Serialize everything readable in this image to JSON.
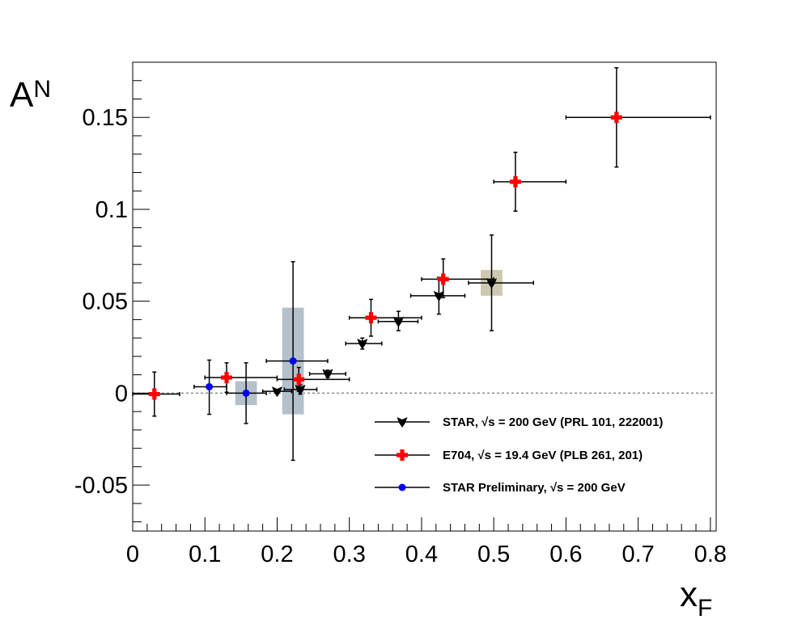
{
  "chart_data": {
    "type": "scatter",
    "title": "",
    "xlabel": "x",
    "xlabel_sub": "F",
    "ylabel": "A",
    "ylabel_sub": "N",
    "xlim": [
      0,
      0.808
    ],
    "ylim": [
      -0.075,
      0.18
    ],
    "x_ticks": [
      0,
      0.1,
      0.2,
      0.3,
      0.4,
      0.5,
      0.6,
      0.7,
      0.8
    ],
    "x_tick_labels": [
      "0",
      "0.1",
      "0.2",
      "0.3",
      "0.4",
      "0.5",
      "0.6",
      "0.7",
      "0.8"
    ],
    "y_ticks": [
      -0.05,
      0,
      0.05,
      0.1,
      0.15
    ],
    "y_tick_labels": [
      "-0.05",
      "0",
      "0.05",
      "0.1",
      "0.15"
    ],
    "grid": false,
    "zero_line": true,
    "legend_position": "bottom-right",
    "series": [
      {
        "name": "STAR, √s = 200 GeV (PRL 101, 222001)",
        "marker": "triangle-down",
        "color": "#000000",
        "points": [
          {
            "x": 0.2,
            "y": 0.001,
            "xlo": 0.18,
            "xhi": 0.22,
            "ylo": 0.0,
            "yhi": 0.002
          },
          {
            "x": 0.232,
            "y": 0.002,
            "xlo": 0.21,
            "xhi": 0.255,
            "ylo": -0.0005,
            "yhi": 0.0045
          },
          {
            "x": 0.27,
            "y": 0.0105,
            "xlo": 0.245,
            "xhi": 0.295,
            "ylo": 0.0085,
            "yhi": 0.0125
          },
          {
            "x": 0.318,
            "y": 0.027,
            "xlo": 0.295,
            "xhi": 0.345,
            "ylo": 0.024,
            "yhi": 0.03
          },
          {
            "x": 0.368,
            "y": 0.039,
            "xlo": 0.34,
            "xhi": 0.395,
            "ylo": 0.034,
            "yhi": 0.0445
          },
          {
            "x": 0.424,
            "y": 0.053,
            "xlo": 0.385,
            "xhi": 0.46,
            "ylo": 0.043,
            "yhi": 0.063
          },
          {
            "x": 0.497,
            "y": 0.06,
            "xlo": 0.465,
            "xhi": 0.555,
            "ylo": 0.034,
            "yhi": 0.086
          }
        ]
      },
      {
        "name": "E704, √s = 19.4 GeV (PLB 261, 201)",
        "marker": "cross",
        "color": "#ff0000",
        "points": [
          {
            "x": 0.03,
            "y": -0.0005,
            "xlo": 0.0,
            "xhi": 0.065,
            "ylo": -0.0125,
            "yhi": 0.0115
          },
          {
            "x": 0.13,
            "y": 0.0085,
            "xlo": 0.1,
            "xhi": 0.2,
            "ylo": 0.0005,
            "yhi": 0.0165
          },
          {
            "x": 0.23,
            "y": 0.0075,
            "xlo": 0.2,
            "xhi": 0.3,
            "ylo": 0.001,
            "yhi": 0.014
          },
          {
            "x": 0.33,
            "y": 0.041,
            "xlo": 0.3,
            "xhi": 0.4,
            "ylo": 0.031,
            "yhi": 0.051
          },
          {
            "x": 0.43,
            "y": 0.062,
            "xlo": 0.4,
            "xhi": 0.5,
            "ylo": 0.052,
            "yhi": 0.073
          },
          {
            "x": 0.53,
            "y": 0.115,
            "xlo": 0.5,
            "xhi": 0.6,
            "ylo": 0.099,
            "yhi": 0.131
          },
          {
            "x": 0.67,
            "y": 0.15,
            "xlo": 0.6,
            "xhi": 0.8,
            "ylo": 0.123,
            "yhi": 0.177
          }
        ]
      },
      {
        "name": "STAR Preliminary, √s = 200 GeV",
        "marker": "circle",
        "color": "#0000ff",
        "points": [
          {
            "x": 0.106,
            "y": 0.0035,
            "xlo": 0.085,
            "xhi": 0.13,
            "ylo": -0.0115,
            "yhi": 0.018
          },
          {
            "x": 0.157,
            "y": 0.0,
            "xlo": 0.13,
            "xhi": 0.185,
            "ylo": -0.0165,
            "yhi": 0.0165
          },
          {
            "x": 0.222,
            "y": 0.0175,
            "xlo": 0.185,
            "xhi": 0.27,
            "ylo": -0.0365,
            "yhi": 0.0715
          }
        ]
      }
    ],
    "systematic_boxes": [
      {
        "x0": 0.142,
        "x1": 0.172,
        "y0": -0.0065,
        "y1": 0.0065,
        "color": "#b4c0cc"
      },
      {
        "x0": 0.207,
        "x1": 0.237,
        "y0": -0.0115,
        "y1": 0.0465,
        "color": "#b4c0cc"
      },
      {
        "x0": 0.482,
        "x1": 0.512,
        "y0": 0.053,
        "y1": 0.067,
        "color": "#cfc8b0"
      }
    ]
  }
}
